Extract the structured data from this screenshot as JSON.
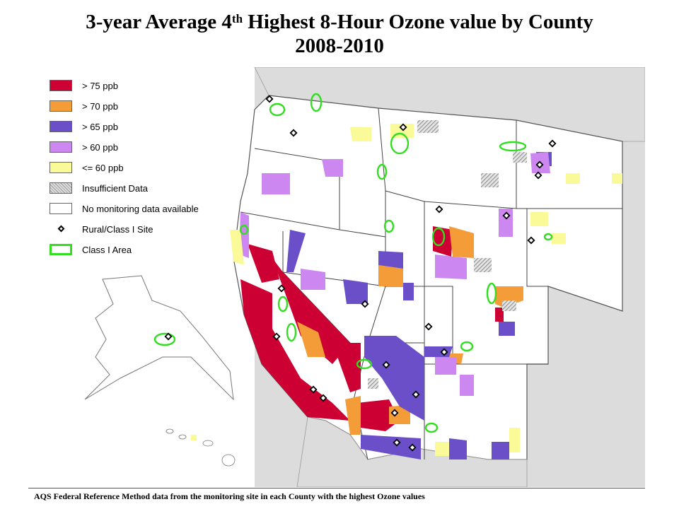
{
  "title": {
    "line1_prefix": "3-year Average 4",
    "line1_sup": "th",
    "line1_suffix": " Highest 8-Hour Ozone value by County",
    "line2": "2008-2010"
  },
  "legend": [
    {
      "label": "> 75 ppb",
      "color": "#cc0033",
      "kind": "fill"
    },
    {
      "label": "> 70 ppb",
      "color": "#f39c38",
      "kind": "fill"
    },
    {
      "label": "> 65 ppb",
      "color": "#6a4fc8",
      "kind": "fill"
    },
    {
      "label": "> 60 ppb",
      "color": "#cc88f0",
      "kind": "fill"
    },
    {
      "label": "<= 60 ppb",
      "color": "#fafa99",
      "kind": "fill"
    },
    {
      "label": "Insufficient Data",
      "color": "#cccccc",
      "kind": "hatch"
    },
    {
      "label": "No monitoring data available",
      "color": "#ffffff",
      "kind": "fill"
    },
    {
      "label": "Rural/Class I Site",
      "color": "#000000",
      "kind": "diamond"
    },
    {
      "label": "Class I Area",
      "color": "#33dd22",
      "kind": "outline"
    }
  ],
  "footnote": "AQS Federal Reference Method data from the monitoring site in each County with the highest Ozone values",
  "colors": {
    "over75": "#cc0033",
    "over70": "#f39c38",
    "over65": "#6a4fc8",
    "over60": "#cc88f0",
    "le60": "#fafa99",
    "background": "#dcdcdc",
    "classI": "#33dd22"
  }
}
